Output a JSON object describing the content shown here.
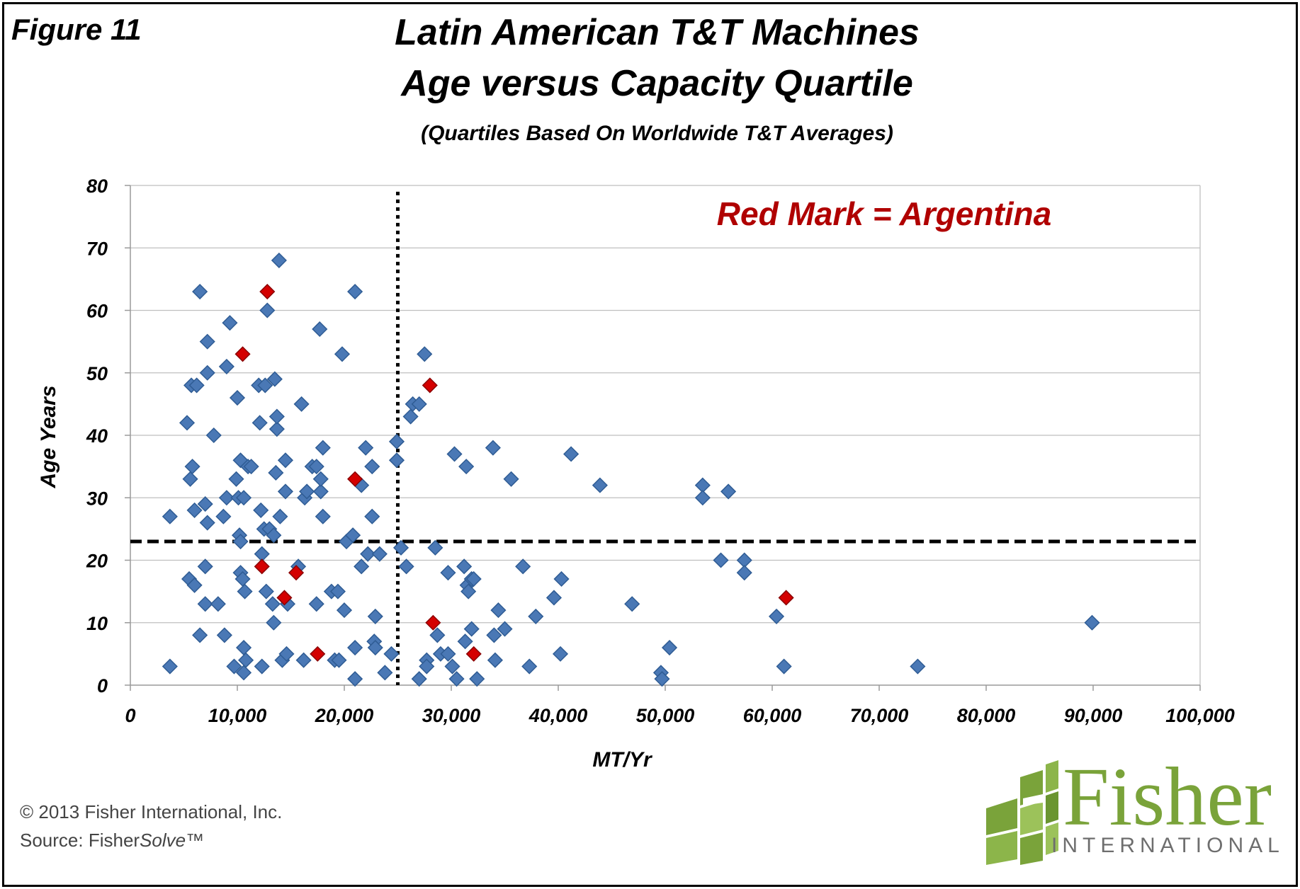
{
  "figure_label": "Figure 11",
  "title_line1": "Latin American T&T  Machines",
  "title_line2": "Age versus  Capacity Quartile",
  "subtitle": "(Quartiles Based On Worldwide T&T Averages)",
  "footer": {
    "copyright": "© 2013 Fisher International, Inc.",
    "source_prefix": "Source: Fisher",
    "source_italic": "Solve",
    "source_suffix": "™"
  },
  "logo": {
    "word": "Fisher",
    "sub": "INTERNATIONAL"
  },
  "colors": {
    "blue": "#4a78b5",
    "blue_dark": "#2f5c94",
    "red": "#d40000",
    "grid": "#bfbfbf",
    "annotation": "#b00000",
    "logo_green": "#7aa33a"
  },
  "chart_data": {
    "type": "scatter",
    "xlabel": "MT/Yr",
    "ylabel": "Age Years",
    "xlim": [
      0,
      100000
    ],
    "ylim": [
      0,
      80
    ],
    "x_ticks": [
      0,
      10000,
      20000,
      30000,
      40000,
      50000,
      60000,
      70000,
      80000,
      90000,
      100000
    ],
    "x_tick_labels": [
      "0",
      "10,000",
      "20,000",
      "30,000",
      "40,000",
      "50,000",
      "60,000",
      "70,000",
      "80,000",
      "90,000",
      "100,000"
    ],
    "y_ticks": [
      0,
      10,
      20,
      30,
      40,
      50,
      60,
      70,
      80
    ],
    "y_tick_labels": [
      "0",
      "10",
      "20",
      "30",
      "40",
      "50",
      "60",
      "70",
      "80"
    ],
    "grid": "horizontal",
    "annotation": "Red Mark = Argentina",
    "reference_lines": {
      "vertical_x": 25000,
      "horizontal_y": 23
    },
    "series": [
      {
        "color": "#4a78b5",
        "points": [
          [
            3700,
            27
          ],
          [
            3700,
            3
          ],
          [
            5300,
            42
          ],
          [
            5500,
            17
          ],
          [
            5700,
            48
          ],
          [
            5600,
            33
          ],
          [
            5800,
            35
          ],
          [
            6000,
            28
          ],
          [
            6000,
            16
          ],
          [
            6200,
            48
          ],
          [
            6500,
            63
          ],
          [
            6500,
            8
          ],
          [
            7000,
            29
          ],
          [
            7200,
            55
          ],
          [
            7200,
            50
          ],
          [
            7000,
            19
          ],
          [
            7000,
            13
          ],
          [
            7200,
            26
          ],
          [
            7800,
            40
          ],
          [
            8200,
            13
          ],
          [
            8700,
            27
          ],
          [
            8800,
            8
          ],
          [
            9000,
            30
          ],
          [
            9000,
            51
          ],
          [
            9300,
            58
          ],
          [
            9700,
            3
          ],
          [
            9900,
            33
          ],
          [
            10000,
            46
          ],
          [
            10100,
            30
          ],
          [
            10200,
            24
          ],
          [
            10300,
            18
          ],
          [
            10300,
            23
          ],
          [
            10300,
            36
          ],
          [
            10500,
            17
          ],
          [
            10600,
            2
          ],
          [
            10600,
            6
          ],
          [
            10600,
            30
          ],
          [
            10700,
            15
          ],
          [
            10800,
            4
          ],
          [
            11000,
            35
          ],
          [
            11300,
            35
          ],
          [
            12000,
            48
          ],
          [
            12100,
            42
          ],
          [
            12200,
            28
          ],
          [
            12300,
            21
          ],
          [
            12300,
            3
          ],
          [
            12500,
            25
          ],
          [
            12600,
            48
          ],
          [
            12700,
            15
          ],
          [
            12800,
            60
          ],
          [
            13000,
            25
          ],
          [
            13300,
            13
          ],
          [
            13400,
            10
          ],
          [
            13400,
            24
          ],
          [
            13500,
            49
          ],
          [
            13600,
            34
          ],
          [
            13700,
            41
          ],
          [
            13700,
            43
          ],
          [
            13900,
            68
          ],
          [
            14000,
            27
          ],
          [
            14200,
            4
          ],
          [
            14500,
            36
          ],
          [
            14500,
            31
          ],
          [
            14600,
            5
          ],
          [
            14700,
            13
          ],
          [
            15700,
            19
          ],
          [
            16000,
            45
          ],
          [
            16200,
            4
          ],
          [
            16300,
            30
          ],
          [
            16500,
            31
          ],
          [
            17000,
            35
          ],
          [
            17400,
            13
          ],
          [
            17400,
            35
          ],
          [
            17700,
            57
          ],
          [
            17800,
            31
          ],
          [
            17800,
            33
          ],
          [
            18000,
            38
          ],
          [
            18000,
            27
          ],
          [
            18800,
            15
          ],
          [
            19100,
            4
          ],
          [
            19400,
            15
          ],
          [
            19500,
            4
          ],
          [
            19800,
            53
          ],
          [
            20000,
            12
          ],
          [
            20200,
            23
          ],
          [
            20800,
            24
          ],
          [
            21000,
            63
          ],
          [
            21000,
            1
          ],
          [
            21000,
            6
          ],
          [
            21600,
            19
          ],
          [
            21600,
            32
          ],
          [
            22000,
            38
          ],
          [
            22200,
            21
          ],
          [
            22600,
            35
          ],
          [
            22600,
            27
          ],
          [
            22900,
            11
          ],
          [
            22800,
            7
          ],
          [
            22900,
            6
          ],
          [
            23300,
            21
          ],
          [
            23800,
            2
          ],
          [
            24400,
            5
          ],
          [
            24900,
            39
          ],
          [
            24900,
            36
          ],
          [
            25300,
            22
          ],
          [
            25800,
            19
          ],
          [
            26200,
            43
          ],
          [
            26400,
            45
          ],
          [
            27000,
            45
          ],
          [
            27000,
            1
          ],
          [
            27500,
            53
          ],
          [
            27700,
            4
          ],
          [
            27700,
            3
          ],
          [
            28500,
            22
          ],
          [
            28700,
            8
          ],
          [
            29000,
            5
          ],
          [
            29700,
            18
          ],
          [
            29700,
            5
          ],
          [
            30100,
            3
          ],
          [
            30300,
            37
          ],
          [
            30500,
            1
          ],
          [
            31200,
            19
          ],
          [
            31300,
            7
          ],
          [
            31400,
            35
          ],
          [
            31500,
            16
          ],
          [
            31600,
            15
          ],
          [
            31900,
            17
          ],
          [
            31900,
            9
          ],
          [
            32100,
            17
          ],
          [
            32400,
            1
          ],
          [
            33900,
            38
          ],
          [
            34000,
            8
          ],
          [
            34100,
            4
          ],
          [
            34400,
            12
          ],
          [
            35000,
            9
          ],
          [
            35600,
            33
          ],
          [
            36700,
            19
          ],
          [
            37300,
            3
          ],
          [
            37900,
            11
          ],
          [
            39600,
            14
          ],
          [
            40300,
            17
          ],
          [
            40200,
            5
          ],
          [
            41200,
            37
          ],
          [
            43900,
            32
          ],
          [
            46900,
            13
          ],
          [
            49600,
            2
          ],
          [
            49700,
            1
          ],
          [
            50400,
            6
          ],
          [
            53500,
            32
          ],
          [
            53500,
            30
          ],
          [
            55200,
            20
          ],
          [
            55900,
            31
          ],
          [
            57400,
            20
          ],
          [
            57400,
            18
          ],
          [
            60400,
            11
          ],
          [
            61100,
            3
          ],
          [
            73600,
            3
          ],
          [
            89900,
            10
          ]
        ]
      },
      {
        "color": "#d40000",
        "points": [
          [
            10500,
            53
          ],
          [
            12800,
            63
          ],
          [
            12300,
            19
          ],
          [
            14400,
            14
          ],
          [
            15500,
            18
          ],
          [
            17500,
            5
          ],
          [
            21000,
            33
          ],
          [
            28000,
            48
          ],
          [
            28300,
            10
          ],
          [
            32100,
            5
          ],
          [
            61300,
            14
          ]
        ]
      }
    ]
  }
}
